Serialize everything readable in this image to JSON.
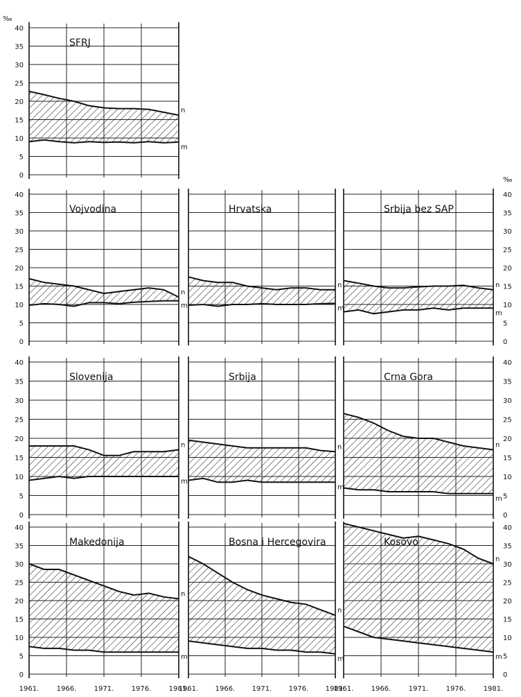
{
  "figure": {
    "unit": "‰",
    "series_labels": {
      "births": "n",
      "deaths": "m"
    },
    "x_ticks": [
      "1961.",
      "1966.",
      "1971.",
      "1976.",
      "1981."
    ],
    "y_ticks": [
      "0",
      "5",
      "10",
      "15",
      "20",
      "25",
      "30",
      "35",
      "40"
    ],
    "colors": {
      "ink": "#111111",
      "grid": "#222222",
      "hatch": "#222222"
    }
  },
  "chart_data": [
    {
      "type": "area",
      "title": "SFRJ",
      "ylim": [
        0,
        40
      ],
      "x": [
        1961,
        1963,
        1965,
        1967,
        1969,
        1971,
        1973,
        1975,
        1977,
        1979,
        1981
      ],
      "series": [
        {
          "name": "n",
          "values": [
            22.7,
            21.8,
            20.8,
            20.0,
            18.8,
            18.2,
            18.0,
            18.0,
            17.8,
            17.0,
            16.2
          ]
        },
        {
          "name": "m",
          "values": [
            9.0,
            9.5,
            9.0,
            8.7,
            9.0,
            8.8,
            8.9,
            8.7,
            9.0,
            8.7,
            8.9
          ]
        }
      ]
    },
    {
      "type": "area",
      "title": "Vojvodina",
      "ylim": [
        0,
        40
      ],
      "x": [
        1961,
        1963,
        1965,
        1967,
        1969,
        1971,
        1973,
        1975,
        1977,
        1979,
        1981
      ],
      "series": [
        {
          "name": "n",
          "values": [
            17.0,
            16.0,
            15.5,
            15.0,
            14.0,
            13.0,
            13.5,
            14.0,
            14.5,
            14.0,
            12.0
          ]
        },
        {
          "name": "m",
          "values": [
            9.8,
            10.2,
            10.0,
            9.5,
            10.5,
            10.5,
            10.2,
            10.6,
            10.8,
            11.0,
            11.0
          ]
        }
      ]
    },
    {
      "type": "area",
      "title": "Hrvatska",
      "ylim": [
        0,
        40
      ],
      "x": [
        1961,
        1963,
        1965,
        1967,
        1969,
        1971,
        1973,
        1975,
        1977,
        1979,
        1981
      ],
      "series": [
        {
          "name": "n",
          "values": [
            17.5,
            16.5,
            16.0,
            16.0,
            15.0,
            14.5,
            14.0,
            14.5,
            14.5,
            14.0,
            14.0
          ]
        },
        {
          "name": "m",
          "values": [
            9.8,
            10.0,
            9.5,
            10.0,
            10.0,
            10.2,
            10.0,
            10.0,
            10.0,
            10.2,
            10.3
          ]
        }
      ]
    },
    {
      "type": "area",
      "title": "Srbija bez SAP",
      "ylim": [
        0,
        40
      ],
      "x": [
        1961,
        1963,
        1965,
        1967,
        1969,
        1971,
        1973,
        1975,
        1977,
        1979,
        1981
      ],
      "series": [
        {
          "name": "n",
          "values": [
            16.5,
            15.8,
            15.0,
            14.5,
            14.5,
            14.8,
            15.0,
            15.0,
            15.2,
            14.5,
            14.0
          ]
        },
        {
          "name": "m",
          "values": [
            8.0,
            8.5,
            7.5,
            8.0,
            8.5,
            8.5,
            9.0,
            8.5,
            9.0,
            9.0,
            9.0
          ]
        }
      ]
    },
    {
      "type": "area",
      "title": "Slovenija",
      "ylim": [
        0,
        40
      ],
      "x": [
        1961,
        1963,
        1965,
        1967,
        1969,
        1971,
        1973,
        1975,
        1977,
        1979,
        1981
      ],
      "series": [
        {
          "name": "n",
          "values": [
            18.0,
            18.0,
            18.0,
            18.0,
            17.0,
            15.5,
            15.5,
            16.5,
            16.5,
            16.5,
            17.0
          ]
        },
        {
          "name": "m",
          "values": [
            9.0,
            9.5,
            10.0,
            9.5,
            10.0,
            10.0,
            10.0,
            10.0,
            10.0,
            10.0,
            10.0
          ]
        }
      ]
    },
    {
      "type": "area",
      "title": "Srbija",
      "ylim": [
        0,
        40
      ],
      "x": [
        1961,
        1963,
        1965,
        1967,
        1969,
        1971,
        1973,
        1975,
        1977,
        1979,
        1981
      ],
      "series": [
        {
          "name": "n",
          "values": [
            19.5,
            19.0,
            18.5,
            18.0,
            17.5,
            17.5,
            17.5,
            17.5,
            17.5,
            16.8,
            16.5
          ]
        },
        {
          "name": "m",
          "values": [
            9.0,
            9.5,
            8.5,
            8.5,
            9.0,
            8.5,
            8.5,
            8.5,
            8.5,
            8.5,
            8.5
          ]
        }
      ]
    },
    {
      "type": "area",
      "title": "Crna Gora",
      "ylim": [
        0,
        40
      ],
      "x": [
        1961,
        1963,
        1965,
        1967,
        1969,
        1971,
        1973,
        1975,
        1977,
        1979,
        1981
      ],
      "series": [
        {
          "name": "n",
          "values": [
            26.5,
            25.5,
            24.0,
            22.0,
            20.5,
            20.0,
            20.0,
            19.0,
            18.0,
            17.5,
            17.0
          ]
        },
        {
          "name": "m",
          "values": [
            7.0,
            6.5,
            6.5,
            6.0,
            6.0,
            6.0,
            6.0,
            5.5,
            5.5,
            5.5,
            5.5
          ]
        }
      ]
    },
    {
      "type": "area",
      "title": "Makedonija",
      "ylim": [
        0,
        40
      ],
      "x": [
        1961,
        1963,
        1965,
        1967,
        1969,
        1971,
        1973,
        1975,
        1977,
        1979,
        1981
      ],
      "series": [
        {
          "name": "n",
          "values": [
            30.0,
            28.5,
            28.5,
            27.0,
            25.5,
            24.0,
            22.5,
            21.5,
            22.0,
            21.0,
            20.5
          ]
        },
        {
          "name": "m",
          "values": [
            7.5,
            7.0,
            7.0,
            6.5,
            6.5,
            6.0,
            6.0,
            6.0,
            6.0,
            6.0,
            6.0
          ]
        }
      ]
    },
    {
      "type": "area",
      "title": "Bosna i Hercegovira",
      "ylim": [
        0,
        40
      ],
      "x": [
        1961,
        1963,
        1965,
        1967,
        1969,
        1971,
        1973,
        1975,
        1977,
        1979,
        1981
      ],
      "series": [
        {
          "name": "n",
          "values": [
            32.0,
            30.0,
            27.5,
            25.0,
            23.0,
            21.5,
            20.5,
            19.5,
            19.0,
            17.5,
            16.0
          ]
        },
        {
          "name": "m",
          "values": [
            9.0,
            8.5,
            8.0,
            7.5,
            7.0,
            7.0,
            6.5,
            6.5,
            6.0,
            6.0,
            5.5
          ]
        }
      ]
    },
    {
      "type": "area",
      "title": "Kosovo",
      "ylim": [
        0,
        40
      ],
      "x": [
        1961,
        1963,
        1965,
        1967,
        1969,
        1971,
        1973,
        1975,
        1977,
        1979,
        1981
      ],
      "series": [
        {
          "name": "n",
          "values": [
            41.0,
            40.0,
            39.0,
            38.0,
            37.0,
            37.5,
            36.5,
            35.5,
            34.0,
            31.5,
            30.0
          ]
        },
        {
          "name": "m",
          "values": [
            13.0,
            11.5,
            10.0,
            9.5,
            9.0,
            8.5,
            8.0,
            7.5,
            7.0,
            6.5,
            6.0
          ]
        }
      ]
    }
  ]
}
